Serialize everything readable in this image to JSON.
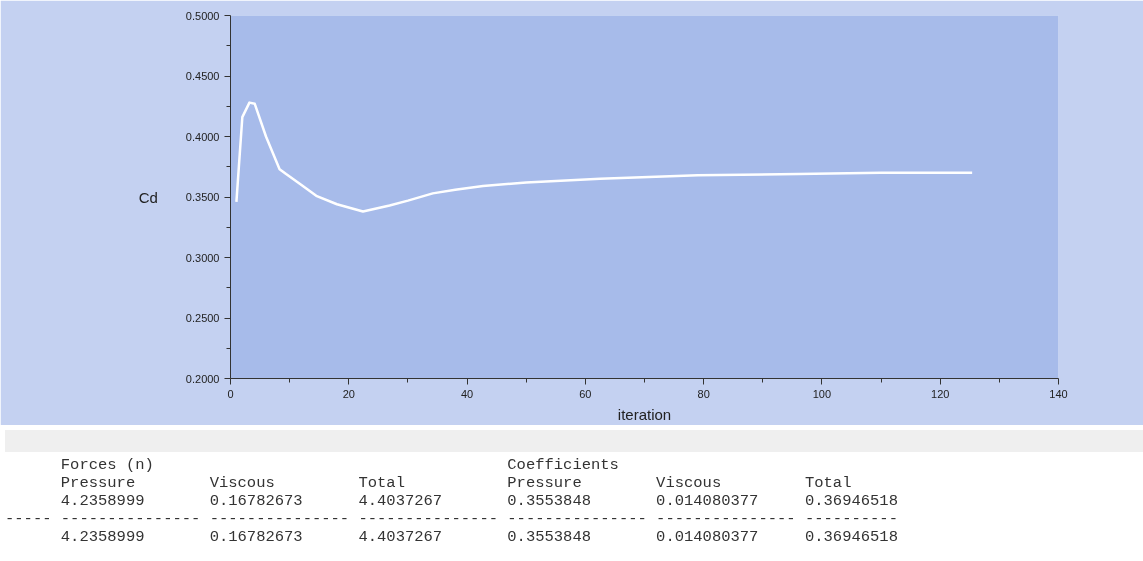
{
  "chart_data": {
    "type": "line",
    "xlabel": "iteration",
    "ylabel": "Cd",
    "x": [
      1.0,
      2.0,
      3.2,
      4.1,
      6.0,
      8.3,
      9.4,
      12.0,
      14.5,
      18.0,
      22.4,
      26.9,
      30.0,
      34.2,
      38.0,
      42.7,
      50.0,
      62.5,
      79.0,
      96.0,
      110.0,
      125.4
    ],
    "series": [
      {
        "color": "#ffffff",
        "values": [
          0.346,
          0.416,
          0.428,
          0.427,
          0.4,
          0.373,
          0.369,
          0.36,
          0.351,
          0.344,
          0.338,
          0.343,
          0.347,
          0.353,
          0.356,
          0.359,
          0.362,
          0.365,
          0.368,
          0.369,
          0.37,
          0.37
        ]
      }
    ],
    "xlim": [
      0,
      140
    ],
    "xticks": [
      0,
      20,
      40,
      60,
      80,
      100,
      120,
      140
    ],
    "ylim": [
      0.2,
      0.5
    ],
    "yticks": [
      {
        "value": 0.2,
        "label": "0.2000"
      },
      {
        "value": 0.25,
        "label": "0.2500"
      },
      {
        "value": 0.3,
        "label": "0.3000"
      },
      {
        "value": 0.35,
        "label": "0.3500"
      },
      {
        "value": 0.4,
        "label": "0.4000"
      },
      {
        "value": 0.45,
        "label": "0.4500"
      },
      {
        "value": 0.5,
        "label": "0.5000"
      }
    ],
    "grid": false,
    "marker": "none",
    "line_style": "solid",
    "annotations": [
      "      Forces (n)                                      Coefficients",
      "      Pressure        Viscous         Total           Pressure        Viscous         Total",
      "      4.2358999       0.16782673      4.4037267       0.3553848       0.014080377     0.36946518",
      "----- --------------- --------------- --------------- --------------- --------------- ----------",
      "      4.2358999       0.16782673      4.4037267       0.3553848       0.014080377     0.36946518"
    ]
  }
}
